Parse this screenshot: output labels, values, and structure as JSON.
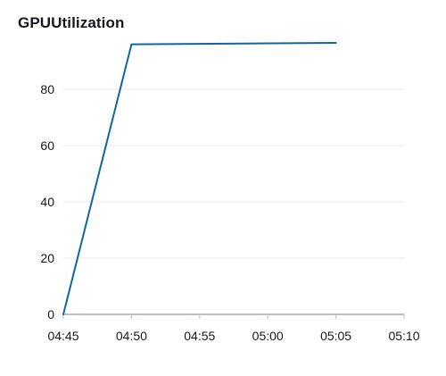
{
  "chart_data": {
    "type": "line",
    "title": "GPUUtilization",
    "xlabel": "",
    "ylabel": "",
    "x_ticks": [
      "04:45",
      "04:50",
      "04:55",
      "05:00",
      "05:05",
      "05:10"
    ],
    "y_ticks": [
      0,
      20,
      40,
      60,
      80
    ],
    "xlim": [
      "04:45",
      "05:10"
    ],
    "ylim": [
      0,
      100
    ],
    "grid": "horizontal",
    "series": [
      {
        "color": "#0972d3",
        "x": [
          "04:45",
          "04:50",
          "05:05"
        ],
        "values": [
          0,
          96,
          96.5
        ]
      }
    ],
    "colors": {
      "line": "#1166a0",
      "grid": "#e9ebed",
      "axis": "#b6bec9",
      "text": "#16191f"
    }
  }
}
